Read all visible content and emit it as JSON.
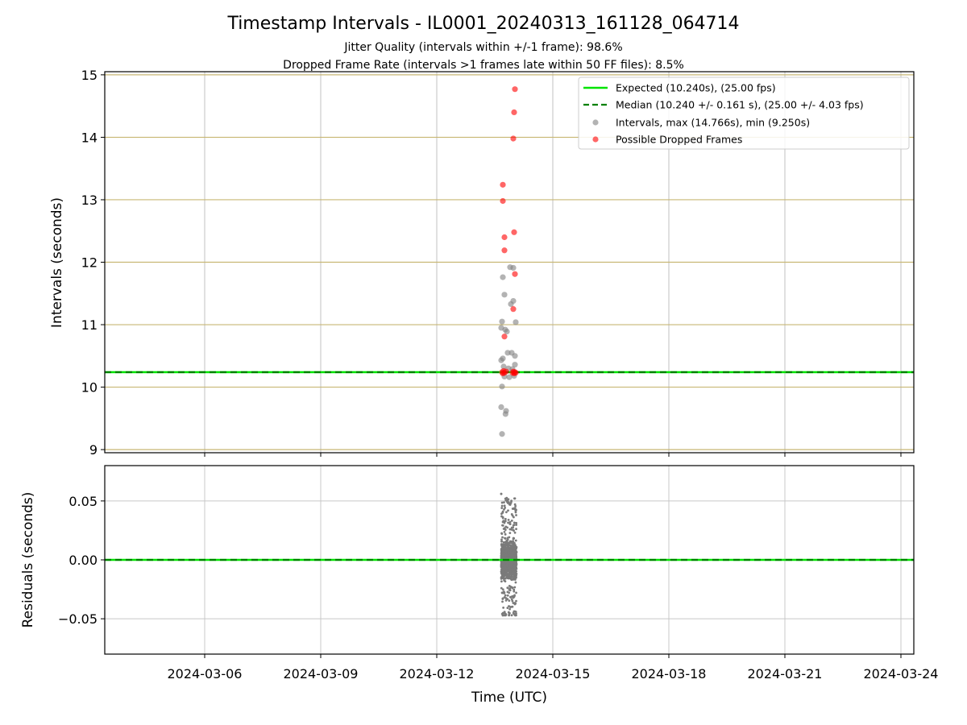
{
  "chart_data": {
    "type": "scatter",
    "title": "Timestamp Intervals - IL0001_20240313_161128_064714",
    "subtitle_lines": [
      "Jitter Quality (intervals within +/-1 frame): 98.6%",
      "Dropped Frame Rate (intervals >1 frames late within 50 FF files): 8.5%"
    ],
    "xlabel": "Time (UTC)",
    "x_tick_labels": [
      "2024-03-06",
      "2024-03-09",
      "2024-03-12",
      "2024-03-15",
      "2024-03-18",
      "2024-03-21",
      "2024-03-24"
    ],
    "x_range": [
      "2024-03-03 10:00",
      "2024-03-24 08:00"
    ],
    "panels": [
      {
        "id": "intervals",
        "ylabel": "Intervals (seconds)",
        "ylim": [
          8.95,
          15.05
        ],
        "y_ticks": [
          9,
          10,
          11,
          12,
          13,
          14,
          15
        ],
        "y_tick_labels": [
          "9",
          "10",
          "11",
          "12",
          "13",
          "14",
          "15"
        ],
        "grid": true,
        "legend_position": "top-right",
        "legend": [
          "Expected (10.240s), (25.00 fps)",
          "Median (10.240 +/- 0.161 s), (25.00 +/- 4.03 fps)",
          "Intervals, max (14.766s), min (9.250s)",
          "Possible Dropped Frames"
        ],
        "expected_value": 10.24,
        "median_value": 10.24,
        "intervals_points": [
          [
            "2024-03-13 16:30",
            9.25
          ],
          [
            "2024-03-13 16:00",
            9.68
          ],
          [
            "2024-03-13 18:40",
            9.57
          ],
          [
            "2024-03-13 19:00",
            9.62
          ],
          [
            "2024-03-13 16:30",
            10.01
          ],
          [
            "2024-03-13 16:00",
            10.43
          ],
          [
            "2024-03-13 17:00",
            10.46
          ],
          [
            "2024-03-13 20:00",
            10.55
          ],
          [
            "2024-03-13 22:30",
            10.55
          ],
          [
            "2024-03-14 00:30",
            10.5
          ],
          [
            "2024-03-13 16:00",
            10.95
          ],
          [
            "2024-03-13 16:30",
            11.05
          ],
          [
            "2024-03-13 18:30",
            10.92
          ],
          [
            "2024-03-13 19:30",
            10.89
          ],
          [
            "2024-03-14 01:00",
            11.04
          ],
          [
            "2024-03-13 18:00",
            11.48
          ],
          [
            "2024-03-13 22:00",
            11.33
          ],
          [
            "2024-03-13 23:30",
            11.38
          ],
          [
            "2024-03-13 17:00",
            11.76
          ],
          [
            "2024-03-13 21:30",
            11.92
          ],
          [
            "2024-03-13 23:30",
            11.91
          ],
          [
            "2024-03-13 17:30",
            10.33
          ],
          [
            "2024-03-13 20:30",
            10.3
          ],
          [
            "2024-03-13 23:00",
            10.29
          ],
          [
            "2024-03-14 00:30",
            10.36
          ],
          [
            "2024-03-13 18:00",
            10.17
          ],
          [
            "2024-03-13 21:00",
            10.16
          ],
          [
            "2024-03-14 00:00",
            10.18
          ]
        ],
        "dropped_points": [
          [
            "2024-03-13 17:00",
            13.24
          ],
          [
            "2024-03-13 17:00",
            12.98
          ],
          [
            "2024-03-13 18:00",
            12.4
          ],
          [
            "2024-03-13 18:00",
            12.19
          ],
          [
            "2024-03-13 18:00",
            10.81
          ],
          [
            "2024-03-13 23:30",
            13.98
          ],
          [
            "2024-03-14 00:00",
            14.4
          ],
          [
            "2024-03-14 00:30",
            14.77
          ],
          [
            "2024-03-14 00:00",
            12.48
          ],
          [
            "2024-03-14 00:30",
            11.81
          ],
          [
            "2024-03-13 23:30",
            11.25
          ],
          [
            "2024-03-13 16:30",
            10.24
          ],
          [
            "2024-03-13 17:00",
            10.22
          ],
          [
            "2024-03-13 17:30",
            10.26
          ],
          [
            "2024-03-13 18:00",
            10.23
          ],
          [
            "2024-03-13 19:00",
            10.25
          ],
          [
            "2024-03-13 23:00",
            10.23
          ],
          [
            "2024-03-13 23:30",
            10.25
          ],
          [
            "2024-03-14 00:00",
            10.22
          ],
          [
            "2024-03-14 00:30",
            10.24
          ],
          [
            "2024-03-14 01:00",
            10.23
          ]
        ]
      },
      {
        "id": "residuals",
        "ylabel": "Residuals (seconds)",
        "ylim": [
          -0.08,
          0.08
        ],
        "y_ticks": [
          -0.05,
          0.0,
          0.05
        ],
        "y_tick_labels": [
          "−0.05",
          "0.00",
          "0.05"
        ],
        "grid": true,
        "zero_line": 0.0,
        "residual_cluster": {
          "x_start": "2024-03-13 16:00",
          "x_end": "2024-03-14 01:30",
          "core_range": [
            -0.022,
            0.022
          ],
          "max": 0.056,
          "min": -0.047
        }
      }
    ],
    "colors": {
      "expected_line": "#00e400",
      "median_line": "#008000",
      "intervals": "#808080",
      "dropped": "#ff0000",
      "grid_intervals": "#c8b774",
      "grid_residuals": "#c8c8c8",
      "residual_points": "#7a7a7a"
    }
  }
}
